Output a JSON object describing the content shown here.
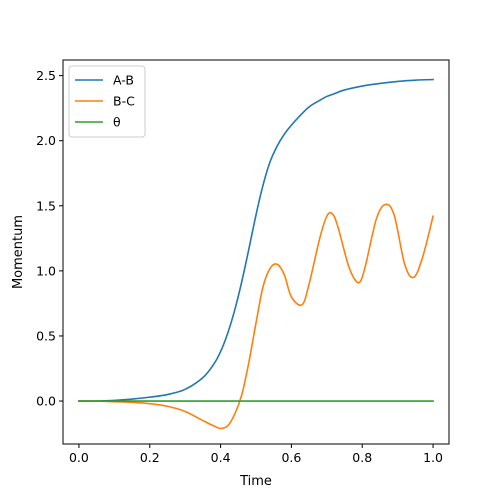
{
  "chart_data": {
    "type": "line",
    "title": "",
    "xlabel": "Time",
    "ylabel": "Momentum",
    "xlim": [
      -0.045,
      1.045
    ],
    "ylim": [
      -0.33,
      2.62
    ],
    "xticks": [
      0.0,
      0.2,
      0.4,
      0.6,
      0.8,
      1.0
    ],
    "xtick_labels": [
      "0.0",
      "0.2",
      "0.4",
      "0.6",
      "0.8",
      "1.0"
    ],
    "yticks": [
      0.0,
      0.5,
      1.0,
      1.5,
      2.0,
      2.5
    ],
    "ytick_labels": [
      "0.0",
      "0.5",
      "1.0",
      "1.5",
      "2.0",
      "2.5"
    ],
    "grid": false,
    "legend": {
      "position": "top-left"
    },
    "series": [
      {
        "name": "A-B",
        "color": "#1f77b4",
        "x": [
          0.0,
          0.05,
          0.1,
          0.15,
          0.2,
          0.25,
          0.3,
          0.35,
          0.38,
          0.4,
          0.42,
          0.44,
          0.46,
          0.48,
          0.5,
          0.52,
          0.54,
          0.56,
          0.58,
          0.6,
          0.62,
          0.65,
          0.68,
          0.7,
          0.72,
          0.75,
          0.8,
          0.85,
          0.9,
          0.95,
          1.0
        ],
        "y": [
          0.0,
          0.0,
          0.005,
          0.015,
          0.03,
          0.05,
          0.09,
          0.18,
          0.28,
          0.38,
          0.52,
          0.7,
          0.92,
          1.17,
          1.43,
          1.66,
          1.84,
          1.96,
          2.05,
          2.12,
          2.18,
          2.26,
          2.31,
          2.34,
          2.36,
          2.39,
          2.42,
          2.44,
          2.455,
          2.465,
          2.47
        ]
      },
      {
        "name": "B-C",
        "color": "#ff7f0e",
        "x": [
          0.0,
          0.05,
          0.1,
          0.15,
          0.2,
          0.25,
          0.3,
          0.35,
          0.38,
          0.4,
          0.42,
          0.44,
          0.46,
          0.48,
          0.5,
          0.52,
          0.54,
          0.56,
          0.58,
          0.6,
          0.63,
          0.65,
          0.68,
          0.7,
          0.715,
          0.73,
          0.76,
          0.78,
          0.795,
          0.81,
          0.84,
          0.865,
          0.89,
          0.92,
          0.945,
          0.97,
          1.0
        ],
        "y": [
          0.0,
          0.0,
          -0.005,
          -0.01,
          -0.02,
          -0.04,
          -0.08,
          -0.15,
          -0.19,
          -0.21,
          -0.19,
          -0.1,
          0.05,
          0.3,
          0.6,
          0.88,
          1.02,
          1.05,
          0.97,
          0.8,
          0.74,
          0.9,
          1.25,
          1.42,
          1.44,
          1.35,
          1.05,
          0.93,
          0.92,
          1.05,
          1.4,
          1.51,
          1.43,
          1.05,
          0.95,
          1.1,
          1.42
        ]
      },
      {
        "name": "θ",
        "color": "#2ca02c",
        "x": [
          0.0,
          1.0
        ],
        "y": [
          0.0,
          0.0
        ]
      }
    ]
  }
}
